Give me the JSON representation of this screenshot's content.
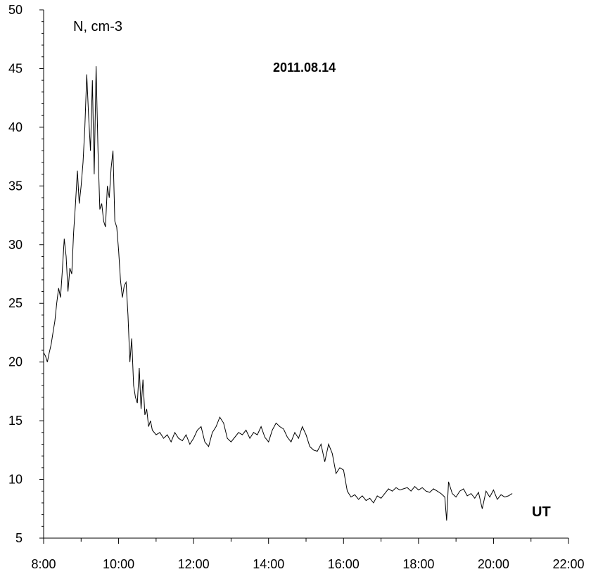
{
  "chart_data": {
    "type": "line",
    "title": "2011.08.14",
    "ylabel": "N, cm-3",
    "xlabel": "UT",
    "xlim": [
      8,
      22
    ],
    "ylim": [
      5,
      50
    ],
    "grid": false,
    "x_ticks": [
      {
        "value": 8,
        "label": "8:00"
      },
      {
        "value": 10,
        "label": "10:00"
      },
      {
        "value": 12,
        "label": "12:00"
      },
      {
        "value": 14,
        "label": "14:00"
      },
      {
        "value": 16,
        "label": "16:00"
      },
      {
        "value": 18,
        "label": "18:00"
      },
      {
        "value": 20,
        "label": "20:00"
      },
      {
        "value": 22,
        "label": "22:00"
      }
    ],
    "y_ticks": [
      {
        "value": 5,
        "label": "5"
      },
      {
        "value": 10,
        "label": "10"
      },
      {
        "value": 15,
        "label": "15"
      },
      {
        "value": 20,
        "label": "20"
      },
      {
        "value": 25,
        "label": "25"
      },
      {
        "value": 30,
        "label": "30"
      },
      {
        "value": 35,
        "label": "35"
      },
      {
        "value": 40,
        "label": "40"
      },
      {
        "value": 45,
        "label": "45"
      },
      {
        "value": 50,
        "label": "50"
      }
    ],
    "series": [
      {
        "color": "#000000",
        "x": [
          8.0,
          8.05,
          8.1,
          8.15,
          8.2,
          8.25,
          8.3,
          8.35,
          8.4,
          8.45,
          8.5,
          8.55,
          8.6,
          8.65,
          8.7,
          8.75,
          8.8,
          8.85,
          8.9,
          8.95,
          9.0,
          9.05,
          9.1,
          9.15,
          9.2,
          9.25,
          9.3,
          9.35,
          9.4,
          9.45,
          9.5,
          9.55,
          9.6,
          9.65,
          9.7,
          9.75,
          9.8,
          9.85,
          9.9,
          9.95,
          10.0,
          10.05,
          10.1,
          10.15,
          10.2,
          10.25,
          10.3,
          10.35,
          10.4,
          10.45,
          10.5,
          10.55,
          10.6,
          10.65,
          10.7,
          10.75,
          10.8,
          10.85,
          10.9,
          11.0,
          11.1,
          11.2,
          11.3,
          11.4,
          11.5,
          11.6,
          11.7,
          11.8,
          11.9,
          12.0,
          12.1,
          12.2,
          12.3,
          12.4,
          12.5,
          12.6,
          12.7,
          12.8,
          12.9,
          13.0,
          13.1,
          13.2,
          13.3,
          13.4,
          13.5,
          13.6,
          13.7,
          13.8,
          13.9,
          14.0,
          14.1,
          14.2,
          14.3,
          14.4,
          14.5,
          14.6,
          14.7,
          14.8,
          14.9,
          15.0,
          15.1,
          15.2,
          15.3,
          15.4,
          15.5,
          15.6,
          15.7,
          15.8,
          15.9,
          16.0,
          16.1,
          16.2,
          16.3,
          16.4,
          16.5,
          16.6,
          16.7,
          16.8,
          16.9,
          17.0,
          17.1,
          17.2,
          17.3,
          17.4,
          17.5,
          17.6,
          17.7,
          17.8,
          17.9,
          18.0,
          18.1,
          18.2,
          18.3,
          18.4,
          18.5,
          18.6,
          18.7,
          18.75,
          18.8,
          18.9,
          19.0,
          19.1,
          19.2,
          19.3,
          19.4,
          19.5,
          19.6,
          19.7,
          19.8,
          19.9,
          20.0,
          20.1,
          20.2,
          20.3,
          20.4,
          20.5
        ],
        "y": [
          20.8,
          20.5,
          20.0,
          20.8,
          21.5,
          22.5,
          23.5,
          25.0,
          26.3,
          25.5,
          27.8,
          30.5,
          29.0,
          26.0,
          28.0,
          27.5,
          31.0,
          33.5,
          36.3,
          33.5,
          35.0,
          37.0,
          40.0,
          44.5,
          41.0,
          38.0,
          44.0,
          36.0,
          45.2,
          38.0,
          33.0,
          33.5,
          32.0,
          31.5,
          35.0,
          34.0,
          36.5,
          38.0,
          32.0,
          31.5,
          29.5,
          27.0,
          25.5,
          26.5,
          26.8,
          24.0,
          20.0,
          22.0,
          18.0,
          17.0,
          16.5,
          19.5,
          16.0,
          18.5,
          15.5,
          16.0,
          14.5,
          15.0,
          14.2,
          13.8,
          14.0,
          13.5,
          13.8,
          13.2,
          14.0,
          13.5,
          13.3,
          13.8,
          13.0,
          13.5,
          14.2,
          14.5,
          13.2,
          12.8,
          14.0,
          14.5,
          15.3,
          14.8,
          13.5,
          13.2,
          13.6,
          14.0,
          13.8,
          14.2,
          13.5,
          14.0,
          13.8,
          14.5,
          13.6,
          13.2,
          14.2,
          14.8,
          14.5,
          14.3,
          13.6,
          13.2,
          14.0,
          13.5,
          14.5,
          13.8,
          12.8,
          12.5,
          12.4,
          13.0,
          11.5,
          13.0,
          12.2,
          10.5,
          11.0,
          10.8,
          9.0,
          8.5,
          8.7,
          8.3,
          8.6,
          8.2,
          8.4,
          8.0,
          8.6,
          8.4,
          8.8,
          9.2,
          9.0,
          9.3,
          9.1,
          9.2,
          9.3,
          9.0,
          9.4,
          9.1,
          9.3,
          9.0,
          8.9,
          9.2,
          9.0,
          8.8,
          8.5,
          6.5,
          9.8,
          8.8,
          8.5,
          9.0,
          9.2,
          8.6,
          8.8,
          8.4,
          8.9,
          7.5,
          9.0,
          8.5,
          9.1,
          8.3,
          8.7,
          8.5,
          8.6,
          8.8
        ]
      }
    ]
  }
}
